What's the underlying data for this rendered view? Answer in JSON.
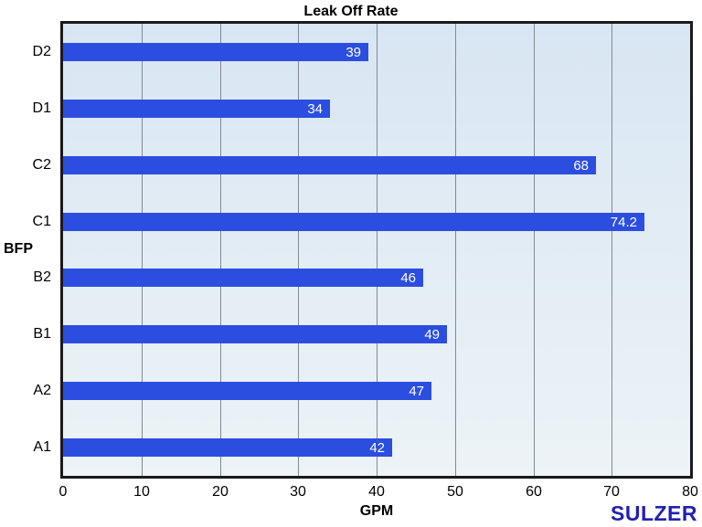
{
  "chart_data": {
    "type": "bar",
    "orientation": "horizontal",
    "title": "Leak Off Rate",
    "xlabel": "GPM",
    "ylabel": "BFP",
    "categories": [
      "D2",
      "D1",
      "C2",
      "C1",
      "B2",
      "B1",
      "A2",
      "A1"
    ],
    "values": [
      39,
      34,
      68,
      74.2,
      46,
      49,
      47,
      42
    ],
    "value_labels": [
      "39",
      "34",
      "68",
      "74.2",
      "46",
      "49",
      "47",
      "42"
    ],
    "xlim": [
      0,
      80
    ],
    "xticks": [
      0,
      10,
      20,
      30,
      40,
      50,
      60,
      70,
      80
    ],
    "grid": "vertical",
    "legend_position": "none",
    "bar_color": "#2b4ee0",
    "bar_label_color": "#ffffff",
    "plot_bg_top": "#d8e6f3",
    "plot_bg_bottom": "#edf3f6",
    "gridline_color": "#828a92",
    "border_color": "#1a1a1a"
  },
  "branding": {
    "logo_text": "SULZER",
    "logo_color": "#2121b2"
  }
}
